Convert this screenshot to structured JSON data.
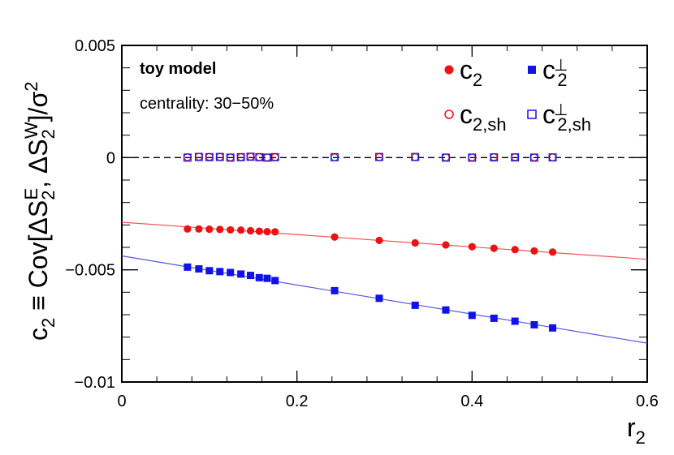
{
  "chart_data": {
    "type": "scatter",
    "title": "",
    "xlabel": "r_2",
    "ylabel": "c_2 ≡ Cov[ΔS_2^E, ΔS_2^W]/σ^2",
    "xlim": [
      0,
      0.6
    ],
    "ylim": [
      -0.01,
      0.005
    ],
    "xticks": [
      {
        "value": 0,
        "label": "0"
      },
      {
        "value": 0.2,
        "label": "0.2"
      },
      {
        "value": 0.4,
        "label": "0.4"
      },
      {
        "value": 0.6,
        "label": "0.6"
      }
    ],
    "yticks": [
      {
        "value": 0.005,
        "label": "0.005"
      },
      {
        "value": 0,
        "label": "0"
      },
      {
        "value": -0.005,
        "label": "−0.005"
      },
      {
        "value": -0.01,
        "label": "−0.01"
      }
    ],
    "grid": false,
    "legend_position": "top-right",
    "annotations": [
      "toy model",
      "centrality: 30−50%"
    ],
    "x": [
      0.075,
      0.088,
      0.1,
      0.112,
      0.124,
      0.136,
      0.147,
      0.157,
      0.166,
      0.175,
      0.243,
      0.294,
      0.335,
      0.37,
      0.4,
      0.425,
      0.449,
      0.471,
      0.492
    ],
    "series": [
      {
        "name": "c_2",
        "color": "#ee1111",
        "marker": "filled-circle",
        "values": [
          -0.00318,
          -0.00318,
          -0.00319,
          -0.0032,
          -0.00322,
          -0.00323,
          -0.00326,
          -0.00328,
          -0.0033,
          -0.00331,
          -0.00354,
          -0.00369,
          -0.0038,
          -0.00389,
          -0.00397,
          -0.00404,
          -0.0041,
          -0.00416,
          -0.00421
        ]
      },
      {
        "name": "c_2^⊥",
        "color": "#1111ee",
        "marker": "filled-square",
        "values": [
          -0.00488,
          -0.00496,
          -0.00504,
          -0.00508,
          -0.00512,
          -0.00519,
          -0.00525,
          -0.00535,
          -0.00538,
          -0.00548,
          -0.00593,
          -0.00627,
          -0.00658,
          -0.00679,
          -0.00703,
          -0.00716,
          -0.00729,
          -0.00745,
          -0.00759
        ]
      },
      {
        "name": "c_2,sh",
        "color": "#ee1111",
        "marker": "open-circle",
        "values": [
          2e-05,
          4e-05,
          3e-05,
          3e-05,
          1e-05,
          2e-05,
          4e-05,
          2e-05,
          1e-05,
          2e-05,
          1e-05,
          2e-05,
          2e-05,
          1e-05,
          1e-05,
          2e-05,
          2e-05,
          1e-05,
          1e-05
        ]
      },
      {
        "name": "c_2,sh^⊥",
        "color": "#1111ee",
        "marker": "open-square",
        "values": [
          0.0,
          3e-05,
          2e-05,
          3e-05,
          0.0,
          2e-05,
          4e-05,
          2e-05,
          0.0,
          2e-05,
          2e-05,
          3e-05,
          3e-05,
          0.0,
          0.0,
          1e-05,
          1e-05,
          0.0,
          1e-05
        ]
      }
    ],
    "fit_lines": [
      {
        "series": "c_2",
        "color": "#ee5555",
        "from": [
          0,
          -0.00288
        ],
        "to": [
          0.6,
          -0.00453
        ]
      },
      {
        "series": "c_2^⊥",
        "color": "#5555ee",
        "from": [
          0,
          -0.00438
        ],
        "to": [
          0.6,
          -0.00827
        ]
      }
    ],
    "reference_line": {
      "y": 0,
      "style": "dashed",
      "color": "#000000"
    }
  }
}
